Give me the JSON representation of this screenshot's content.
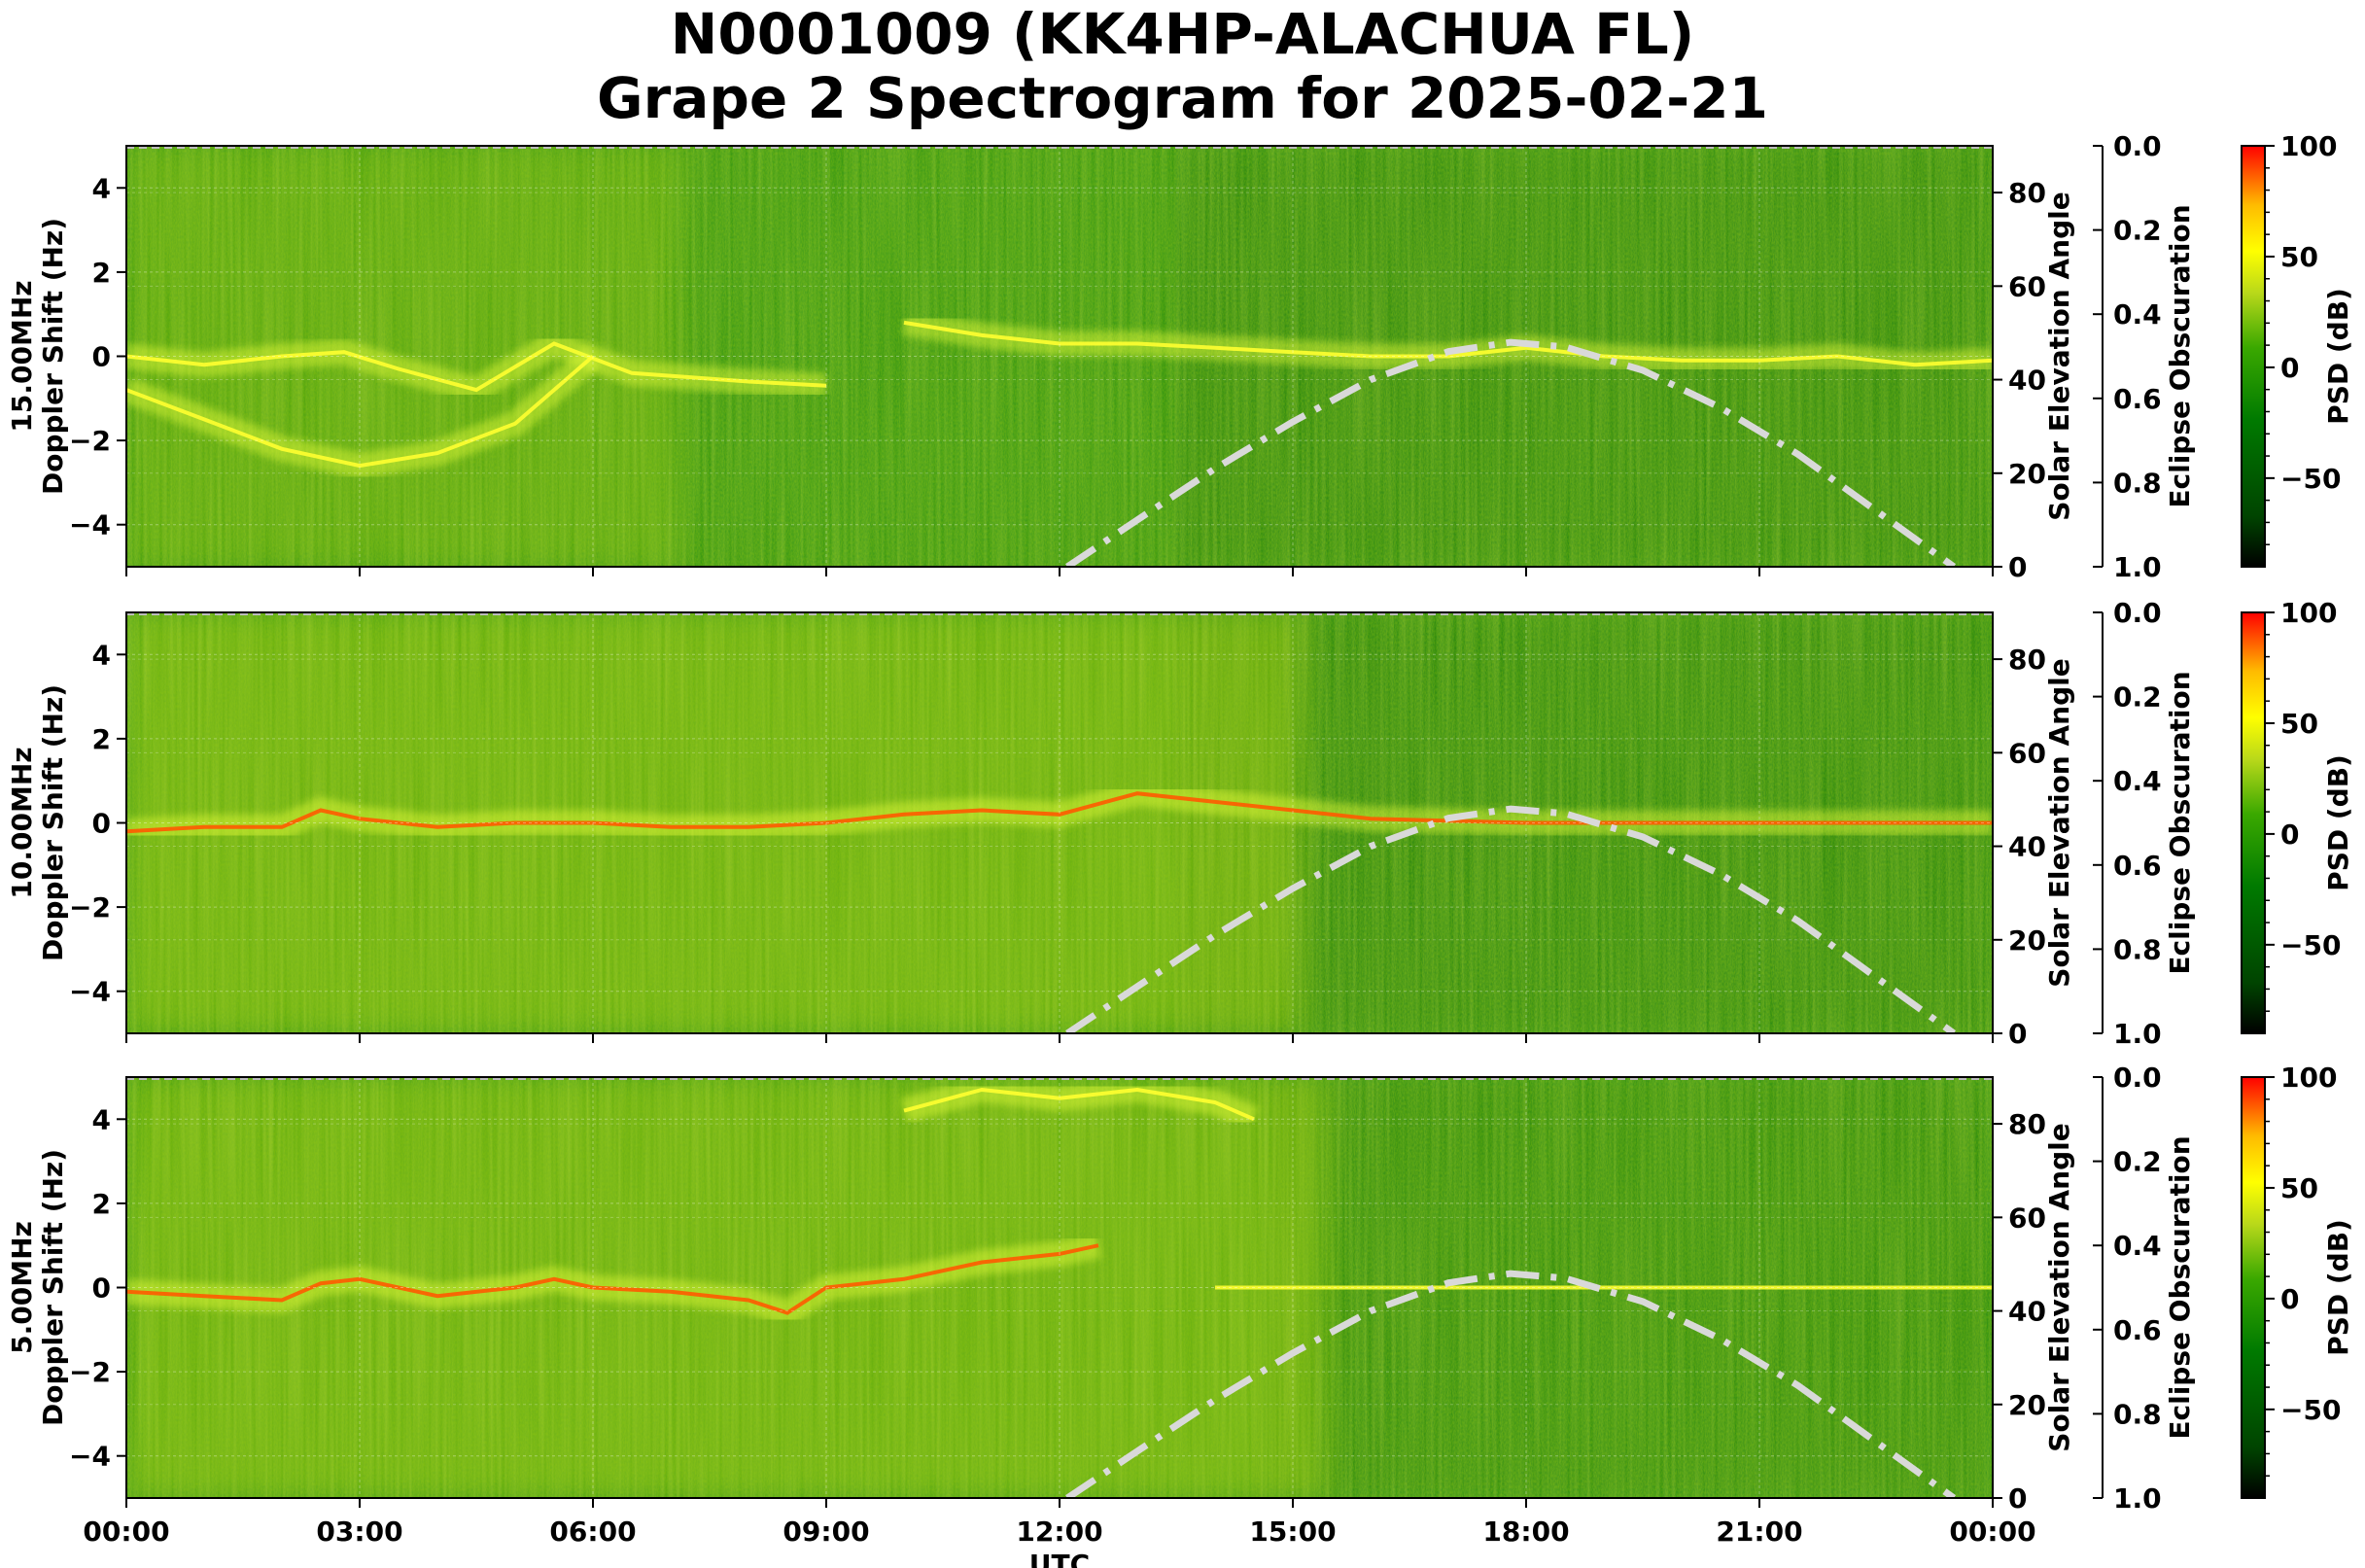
{
  "header": {
    "title_line1": "N0001009 (KK4HP-ALACHUA FL)",
    "title_line2": "Grape 2 Spectrogram for 2025-02-21"
  },
  "colors": {
    "colormap_stops": [
      "#000000",
      "#006400",
      "#008c00",
      "#3cb400",
      "#c8dc14",
      "#ffff00",
      "#ffc800",
      "#ff6400",
      "#ff0000"
    ],
    "solar_curve": "#d9d9d9"
  },
  "chart_data": [
    {
      "type": "heatmap",
      "panel_label": "15.00MHz",
      "ylabel": "Doppler Shift (Hz)",
      "ylim": [
        -5,
        5
      ],
      "yticks": [
        -4,
        -2,
        0,
        2,
        4
      ],
      "xlim": [
        "00:00",
        "24:00"
      ],
      "xticks": [
        "00:00",
        "03:00",
        "06:00",
        "09:00",
        "12:00",
        "15:00",
        "18:00",
        "21:00",
        "00:00"
      ],
      "right_axis": {
        "label": "Solar Elevation Angle",
        "ylim": [
          0,
          90
        ],
        "ticks": [
          0,
          20,
          40,
          60,
          80
        ]
      },
      "eclipse_axis": {
        "label": "Eclipse Obscuration",
        "ylim": [
          0.0,
          1.0
        ],
        "ticks": [
          "0.0",
          "0.2",
          "0.4",
          "0.6",
          "0.8",
          "1.0"
        ]
      },
      "colorbar": {
        "label": "PSD (dB)",
        "range": [
          -90,
          100
        ],
        "ticks": [
          100,
          50,
          0,
          -50
        ]
      },
      "solar_elevation": [
        [
          12.1,
          0
        ],
        [
          13,
          10
        ],
        [
          14,
          21
        ],
        [
          15,
          31
        ],
        [
          16,
          40
        ],
        [
          17,
          46
        ],
        [
          17.8,
          48
        ],
        [
          18.5,
          47
        ],
        [
          19.5,
          42
        ],
        [
          20.5,
          34
        ],
        [
          21.5,
          24
        ],
        [
          22.5,
          12
        ],
        [
          23.5,
          0
        ]
      ],
      "doppler_traces": [
        {
          "hour": [
            0,
            1,
            2,
            2.8,
            3.5,
            4.5,
            5.5,
            6.5,
            8,
            9
          ],
          "doppler_hz": [
            0,
            -0.2,
            0,
            0.1,
            -0.3,
            -0.8,
            0.3,
            -0.4,
            -0.6,
            -0.7
          ]
        },
        {
          "hour": [
            0,
            1,
            2,
            3,
            4,
            5,
            6
          ],
          "doppler_hz": [
            -0.8,
            -1.5,
            -2.2,
            -2.6,
            -2.3,
            -1.6,
            0
          ]
        },
        {
          "hour": [
            10,
            11,
            12,
            13,
            14,
            15,
            16,
            17,
            18,
            19,
            20,
            21,
            22,
            23,
            24
          ],
          "doppler_hz": [
            0.8,
            0.5,
            0.3,
            0.3,
            0.2,
            0.1,
            0,
            0,
            0.2,
            0,
            -0.1,
            -0.1,
            0,
            -0.2,
            -0.1
          ]
        }
      ]
    },
    {
      "type": "heatmap",
      "panel_label": "10.00MHz",
      "ylabel": "Doppler Shift (Hz)",
      "ylim": [
        -5,
        5
      ],
      "yticks": [
        -4,
        -2,
        0,
        2,
        4
      ],
      "xlim": [
        "00:00",
        "24:00"
      ],
      "xticks": [
        "00:00",
        "03:00",
        "06:00",
        "09:00",
        "12:00",
        "15:00",
        "18:00",
        "21:00",
        "00:00"
      ],
      "right_axis": {
        "label": "Solar Elevation Angle",
        "ylim": [
          0,
          90
        ],
        "ticks": [
          0,
          20,
          40,
          60,
          80
        ]
      },
      "eclipse_axis": {
        "label": "Eclipse Obscuration",
        "ylim": [
          0.0,
          1.0
        ],
        "ticks": [
          "0.0",
          "0.2",
          "0.4",
          "0.6",
          "0.8",
          "1.0"
        ]
      },
      "colorbar": {
        "label": "PSD (dB)",
        "range": [
          -90,
          100
        ],
        "ticks": [
          100,
          50,
          0,
          -50
        ]
      },
      "solar_elevation": [
        [
          12.1,
          0
        ],
        [
          13,
          10
        ],
        [
          14,
          21
        ],
        [
          15,
          31
        ],
        [
          16,
          40
        ],
        [
          17,
          46
        ],
        [
          17.8,
          48
        ],
        [
          18.5,
          47
        ],
        [
          19.5,
          42
        ],
        [
          20.5,
          34
        ],
        [
          21.5,
          24
        ],
        [
          22.5,
          12
        ],
        [
          23.5,
          0
        ]
      ],
      "doppler_traces": [
        {
          "hour": [
            0,
            1,
            2,
            2.5,
            3,
            4,
            5,
            6,
            7,
            8,
            9,
            10,
            11,
            12,
            13,
            14,
            15,
            16,
            18,
            20,
            22,
            24
          ],
          "doppler_hz": [
            -0.2,
            -0.1,
            -0.1,
            0.3,
            0.1,
            -0.1,
            0,
            0,
            -0.1,
            -0.1,
            0,
            0.2,
            0.3,
            0.2,
            0.7,
            0.5,
            0.3,
            0.1,
            0,
            0,
            0,
            0
          ]
        }
      ]
    },
    {
      "type": "heatmap",
      "panel_label": "5.00MHz",
      "ylabel": "Doppler Shift (Hz)",
      "xlabel": "UTC",
      "ylim": [
        -5,
        5
      ],
      "yticks": [
        -4,
        -2,
        0,
        2,
        4
      ],
      "xlim": [
        "00:00",
        "24:00"
      ],
      "xticks": [
        "00:00",
        "03:00",
        "06:00",
        "09:00",
        "12:00",
        "15:00",
        "18:00",
        "21:00",
        "00:00"
      ],
      "right_axis": {
        "label": "Solar Elevation Angle",
        "ylim": [
          0,
          90
        ],
        "ticks": [
          0,
          20,
          40,
          60,
          80
        ]
      },
      "eclipse_axis": {
        "label": "Eclipse Obscuration",
        "ylim": [
          0.0,
          1.0
        ],
        "ticks": [
          "0.0",
          "0.2",
          "0.4",
          "0.6",
          "0.8",
          "1.0"
        ]
      },
      "colorbar": {
        "label": "PSD (dB)",
        "range": [
          -90,
          100
        ],
        "ticks": [
          100,
          50,
          0,
          -50
        ]
      },
      "solar_elevation": [
        [
          12.1,
          0
        ],
        [
          13,
          10
        ],
        [
          14,
          21
        ],
        [
          15,
          31
        ],
        [
          16,
          40
        ],
        [
          17,
          46
        ],
        [
          17.8,
          48
        ],
        [
          18.5,
          47
        ],
        [
          19.5,
          42
        ],
        [
          20.5,
          34
        ],
        [
          21.5,
          24
        ],
        [
          22.5,
          12
        ],
        [
          23.5,
          0
        ]
      ],
      "doppler_traces": [
        {
          "hour": [
            0,
            1,
            2,
            2.5,
            3,
            4,
            5,
            5.5,
            6,
            7,
            8,
            8.5,
            9,
            10,
            11,
            12,
            12.5
          ],
          "doppler_hz": [
            -0.1,
            -0.2,
            -0.3,
            0.1,
            0.2,
            -0.2,
            0,
            0.2,
            0,
            -0.1,
            -0.3,
            -0.6,
            0,
            0.2,
            0.6,
            0.8,
            1.0
          ]
        },
        {
          "hour": [
            10,
            11,
            12,
            13,
            14,
            14.5
          ],
          "doppler_hz": [
            4.2,
            4.7,
            4.5,
            4.7,
            4.4,
            4.0
          ]
        },
        {
          "hour": [
            14,
            16,
            18,
            20,
            22,
            24
          ],
          "doppler_hz": [
            0,
            0,
            0,
            0,
            0,
            0
          ]
        }
      ]
    }
  ]
}
